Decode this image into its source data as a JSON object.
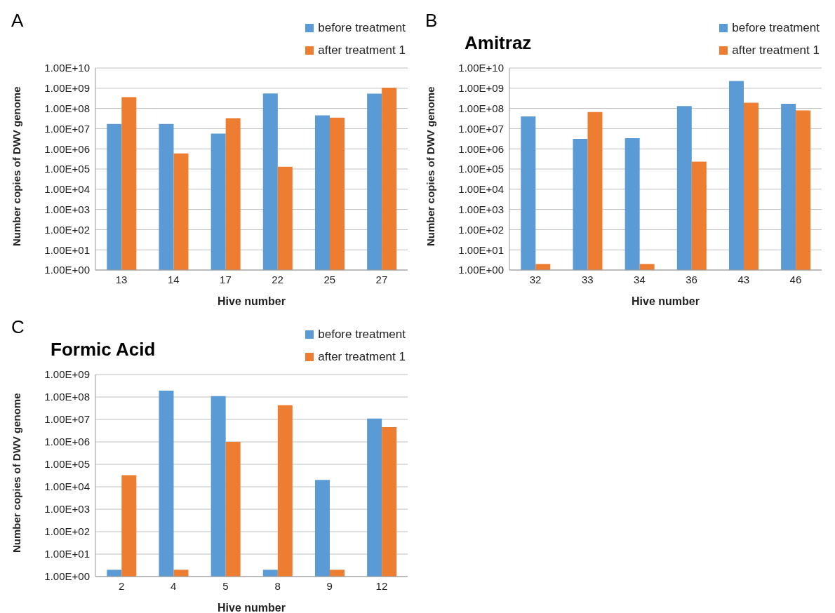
{
  "chart_data": [
    {
      "type": "bar",
      "annotations": [
        "A"
      ],
      "categories": [
        "13",
        "14",
        "17",
        "22",
        "25",
        "27"
      ],
      "xlabel": "Hive number",
      "ylabel": "Number copies of DWV genome",
      "log": "y",
      "ylim": [
        1,
        10000000000
      ],
      "yticks": [
        {
          "value": 1,
          "label": "1.00E+00"
        },
        {
          "value": 10,
          "label": "1.00E+01"
        },
        {
          "value": 100,
          "label": "1.00E+02"
        },
        {
          "value": 1000,
          "label": "1.00E+03"
        },
        {
          "value": 10000,
          "label": "1.00E+04"
        },
        {
          "value": 100000,
          "label": "1.00E+05"
        },
        {
          "value": 1000000,
          "label": "1.00E+06"
        },
        {
          "value": 10000000,
          "label": "1.00E+07"
        },
        {
          "value": 100000000,
          "label": "1.00E+08"
        },
        {
          "value": 1000000000,
          "label": "1.00E+09"
        },
        {
          "value": 10000000000,
          "label": "1.00E+10"
        }
      ],
      "grid": "y",
      "legend": "top right",
      "series": [
        {
          "name": "before treatment",
          "color": "#5b9bd5",
          "values": [
            17000000,
            17000000,
            5700000,
            550000000,
            45000000,
            540000000
          ]
        },
        {
          "name": "after treatment 1",
          "color": "#ed7d31",
          "values": [
            360000000,
            590000,
            33000000,
            130000,
            35000000,
            1070000000
          ]
        }
      ]
    },
    {
      "type": "bar",
      "title": "Amitraz",
      "annotations": [
        "B"
      ],
      "categories": [
        "32",
        "33",
        "34",
        "36",
        "43",
        "46"
      ],
      "xlabel": "Hive number",
      "ylabel": "Number copies of DWV genome",
      "log": "y",
      "ylim": [
        1,
        10000000000
      ],
      "yticks": [
        {
          "value": 1,
          "label": "1.00E+00"
        },
        {
          "value": 10,
          "label": "1.00E+01"
        },
        {
          "value": 100,
          "label": "1.00E+02"
        },
        {
          "value": 1000,
          "label": "1.00E+03"
        },
        {
          "value": 10000,
          "label": "1.00E+04"
        },
        {
          "value": 100000,
          "label": "1.00E+05"
        },
        {
          "value": 1000000,
          "label": "1.00E+06"
        },
        {
          "value": 10000000,
          "label": "1.00E+07"
        },
        {
          "value": 100000000,
          "label": "1.00E+08"
        },
        {
          "value": 1000000000,
          "label": "1.00E+09"
        },
        {
          "value": 10000000000,
          "label": "1.00E+10"
        }
      ],
      "grid": "y",
      "legend": "top right",
      "series": [
        {
          "name": "before treatment",
          "color": "#5b9bd5",
          "values": [
            40000000,
            3100000,
            3400000,
            130000000,
            2300000000,
            170000000
          ]
        },
        {
          "name": "after treatment 1",
          "color": "#ed7d31",
          "values": [
            2,
            66000000,
            2,
            230000,
            190000000,
            80000000
          ]
        }
      ]
    },
    {
      "type": "bar",
      "title": "Formic Acid",
      "annotations": [
        "C"
      ],
      "categories": [
        "2",
        "4",
        "5",
        "8",
        "9",
        "12"
      ],
      "xlabel": "Hive number",
      "ylabel": "Number copies of DWV genome",
      "log": "y",
      "ylim": [
        1,
        1000000000
      ],
      "yticks": [
        {
          "value": 1,
          "label": "1.00E+00"
        },
        {
          "value": 10,
          "label": "1.00E+01"
        },
        {
          "value": 100,
          "label": "1.00E+02"
        },
        {
          "value": 1000,
          "label": "1.00E+03"
        },
        {
          "value": 10000,
          "label": "1.00E+04"
        },
        {
          "value": 100000,
          "label": "1.00E+05"
        },
        {
          "value": 1000000,
          "label": "1.00E+06"
        },
        {
          "value": 10000000,
          "label": "1.00E+07"
        },
        {
          "value": 100000000,
          "label": "1.00E+08"
        },
        {
          "value": 1000000000,
          "label": "1.00E+09"
        }
      ],
      "grid": "y",
      "legend": "top right",
      "series": [
        {
          "name": "before treatment",
          "color": "#5b9bd5",
          "values": [
            2,
            190000000,
            110000000,
            2,
            20000,
            11000000
          ]
        },
        {
          "name": "after treatment 1",
          "color": "#ed7d31",
          "values": [
            33000,
            2,
            1000000,
            43000000,
            2,
            4500000
          ]
        }
      ]
    }
  ]
}
